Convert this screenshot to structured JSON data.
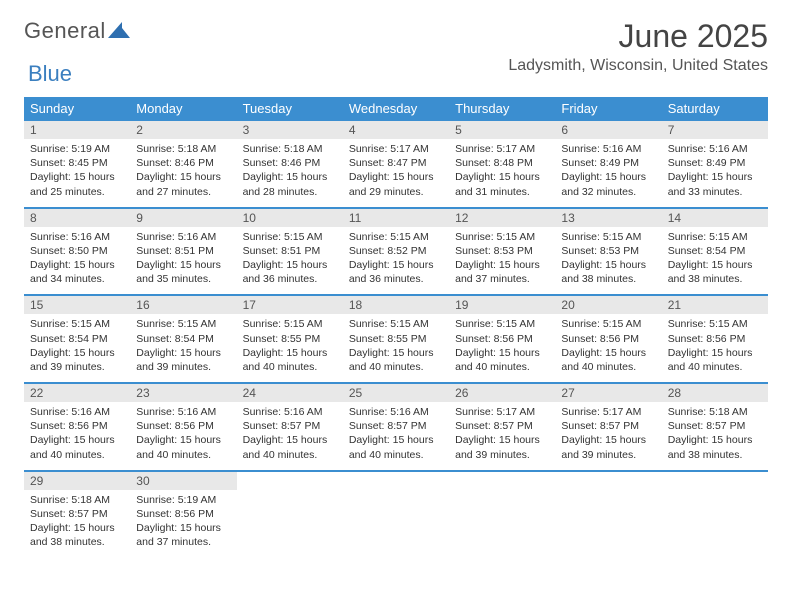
{
  "brand": {
    "word1": "General",
    "word2": "Blue"
  },
  "title": "June 2025",
  "location": "Ladysmith, Wisconsin, United States",
  "colors": {
    "header_bg": "#3b8ed0",
    "header_text": "#ffffff",
    "daynum_bg": "#e8e8e8",
    "border": "#3b8ed0",
    "brand_blue": "#3b7fbf"
  },
  "day_headers": [
    "Sunday",
    "Monday",
    "Tuesday",
    "Wednesday",
    "Thursday",
    "Friday",
    "Saturday"
  ],
  "weeks": [
    [
      {
        "n": "1",
        "sr": "5:19 AM",
        "ss": "8:45 PM",
        "dl": "15 hours and 25 minutes."
      },
      {
        "n": "2",
        "sr": "5:18 AM",
        "ss": "8:46 PM",
        "dl": "15 hours and 27 minutes."
      },
      {
        "n": "3",
        "sr": "5:18 AM",
        "ss": "8:46 PM",
        "dl": "15 hours and 28 minutes."
      },
      {
        "n": "4",
        "sr": "5:17 AM",
        "ss": "8:47 PM",
        "dl": "15 hours and 29 minutes."
      },
      {
        "n": "5",
        "sr": "5:17 AM",
        "ss": "8:48 PM",
        "dl": "15 hours and 31 minutes."
      },
      {
        "n": "6",
        "sr": "5:16 AM",
        "ss": "8:49 PM",
        "dl": "15 hours and 32 minutes."
      },
      {
        "n": "7",
        "sr": "5:16 AM",
        "ss": "8:49 PM",
        "dl": "15 hours and 33 minutes."
      }
    ],
    [
      {
        "n": "8",
        "sr": "5:16 AM",
        "ss": "8:50 PM",
        "dl": "15 hours and 34 minutes."
      },
      {
        "n": "9",
        "sr": "5:16 AM",
        "ss": "8:51 PM",
        "dl": "15 hours and 35 minutes."
      },
      {
        "n": "10",
        "sr": "5:15 AM",
        "ss": "8:51 PM",
        "dl": "15 hours and 36 minutes."
      },
      {
        "n": "11",
        "sr": "5:15 AM",
        "ss": "8:52 PM",
        "dl": "15 hours and 36 minutes."
      },
      {
        "n": "12",
        "sr": "5:15 AM",
        "ss": "8:53 PM",
        "dl": "15 hours and 37 minutes."
      },
      {
        "n": "13",
        "sr": "5:15 AM",
        "ss": "8:53 PM",
        "dl": "15 hours and 38 minutes."
      },
      {
        "n": "14",
        "sr": "5:15 AM",
        "ss": "8:54 PM",
        "dl": "15 hours and 38 minutes."
      }
    ],
    [
      {
        "n": "15",
        "sr": "5:15 AM",
        "ss": "8:54 PM",
        "dl": "15 hours and 39 minutes."
      },
      {
        "n": "16",
        "sr": "5:15 AM",
        "ss": "8:54 PM",
        "dl": "15 hours and 39 minutes."
      },
      {
        "n": "17",
        "sr": "5:15 AM",
        "ss": "8:55 PM",
        "dl": "15 hours and 40 minutes."
      },
      {
        "n": "18",
        "sr": "5:15 AM",
        "ss": "8:55 PM",
        "dl": "15 hours and 40 minutes."
      },
      {
        "n": "19",
        "sr": "5:15 AM",
        "ss": "8:56 PM",
        "dl": "15 hours and 40 minutes."
      },
      {
        "n": "20",
        "sr": "5:15 AM",
        "ss": "8:56 PM",
        "dl": "15 hours and 40 minutes."
      },
      {
        "n": "21",
        "sr": "5:15 AM",
        "ss": "8:56 PM",
        "dl": "15 hours and 40 minutes."
      }
    ],
    [
      {
        "n": "22",
        "sr": "5:16 AM",
        "ss": "8:56 PM",
        "dl": "15 hours and 40 minutes."
      },
      {
        "n": "23",
        "sr": "5:16 AM",
        "ss": "8:56 PM",
        "dl": "15 hours and 40 minutes."
      },
      {
        "n": "24",
        "sr": "5:16 AM",
        "ss": "8:57 PM",
        "dl": "15 hours and 40 minutes."
      },
      {
        "n": "25",
        "sr": "5:16 AM",
        "ss": "8:57 PM",
        "dl": "15 hours and 40 minutes."
      },
      {
        "n": "26",
        "sr": "5:17 AM",
        "ss": "8:57 PM",
        "dl": "15 hours and 39 minutes."
      },
      {
        "n": "27",
        "sr": "5:17 AM",
        "ss": "8:57 PM",
        "dl": "15 hours and 39 minutes."
      },
      {
        "n": "28",
        "sr": "5:18 AM",
        "ss": "8:57 PM",
        "dl": "15 hours and 38 minutes."
      }
    ],
    [
      {
        "n": "29",
        "sr": "5:18 AM",
        "ss": "8:57 PM",
        "dl": "15 hours and 38 minutes."
      },
      {
        "n": "30",
        "sr": "5:19 AM",
        "ss": "8:56 PM",
        "dl": "15 hours and 37 minutes."
      },
      null,
      null,
      null,
      null,
      null
    ]
  ],
  "labels": {
    "sunrise": "Sunrise: ",
    "sunset": "Sunset: ",
    "daylight": "Daylight: "
  }
}
